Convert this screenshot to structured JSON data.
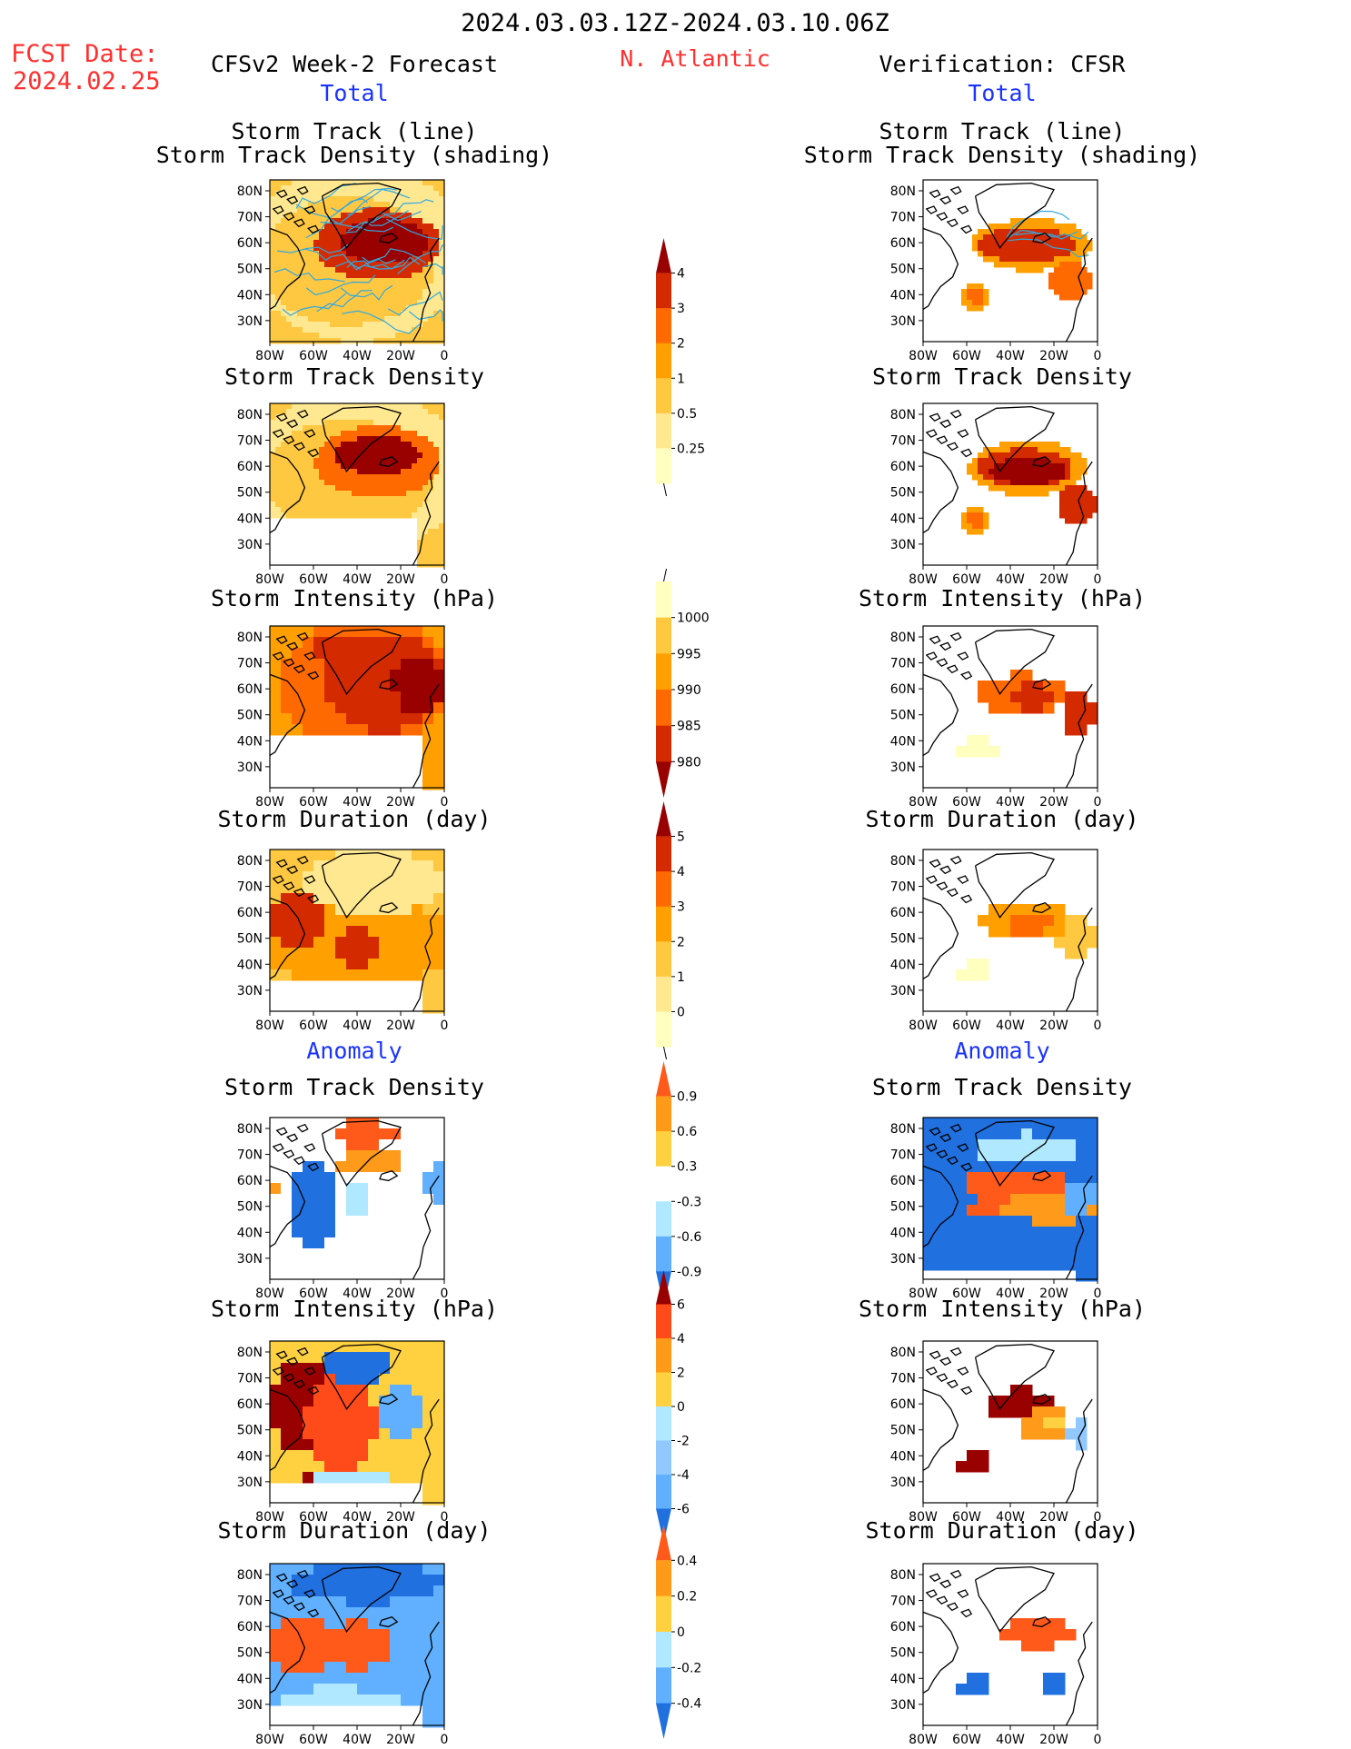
{
  "header": {
    "period": "2024.03.03.12Z-2024.03.10.06Z",
    "fcst_label": "FCST Date:",
    "fcst_date": "2024.02.25",
    "model": "CFSv2 Week-2 Forecast",
    "region": "N. Atlantic",
    "verification": "Verification: CFSR"
  },
  "sections": {
    "total": "Total",
    "anomaly": "Anomaly"
  },
  "panel_titles": {
    "track_line": "Storm Track (line)",
    "track_density_shading": "Storm Track Density (shading)",
    "track_density": "Storm Track Density",
    "intensity": "Storm Intensity (hPa)",
    "duration": "Storm Duration (day)"
  },
  "axes": {
    "lat_ticks": [
      "80N",
      "70N",
      "60N",
      "50N",
      "40N",
      "30N"
    ],
    "lon_ticks": [
      "80W",
      "60W",
      "40W",
      "20W",
      "0"
    ]
  },
  "colorbars": {
    "track_density_total": {
      "labels": [
        "4",
        "3",
        "2",
        "1",
        "0.5",
        "0.25"
      ],
      "colors": [
        "#990000",
        "#d42a00",
        "#ff6a00",
        "#ffa000",
        "#ffc840",
        "#ffe890",
        "#ffffc0"
      ]
    },
    "intensity_total": {
      "labels": [
        "1000",
        "995",
        "990",
        "985",
        "980"
      ],
      "colors": [
        "#ffffc0",
        "#ffc840",
        "#ffa000",
        "#ff6a00",
        "#d42a00",
        "#990000"
      ]
    },
    "duration_total": {
      "labels": [
        "5",
        "4",
        "3",
        "2",
        "1",
        "0"
      ],
      "colors": [
        "#990000",
        "#d42a00",
        "#ff6a00",
        "#ffa000",
        "#ffc840",
        "#ffe890",
        "#ffffc0"
      ]
    },
    "track_density_anom": {
      "labels": [
        "0.9",
        "0.6",
        "0.3",
        "-0.3",
        "-0.6",
        "-0.9"
      ],
      "colors": [
        "#ff5a1a",
        "#ff9a1a",
        "#ffd040",
        "#ffffff",
        "#b0e8ff",
        "#60b0ff",
        "#2070e0"
      ]
    },
    "intensity_anom": {
      "labels": [
        "6",
        "4",
        "2",
        "0",
        "-2",
        "-4",
        "-6"
      ],
      "colors": [
        "#990000",
        "#ff4a1a",
        "#ff9a1a",
        "#ffd040",
        "#b0e8ff",
        "#90c8ff",
        "#60b0ff",
        "#2070e0"
      ]
    },
    "duration_anom": {
      "labels": [
        "0.4",
        "0.2",
        "0",
        "-0.2",
        "-0.4"
      ],
      "colors": [
        "#ff5a1a",
        "#ff9a1a",
        "#ffd040",
        "#b0e8ff",
        "#60b0ff",
        "#2070e0"
      ]
    }
  },
  "colors": {
    "title_red": "#ff3030",
    "section_blue": "#1a33ff",
    "track_line": "#30a8e0"
  }
}
